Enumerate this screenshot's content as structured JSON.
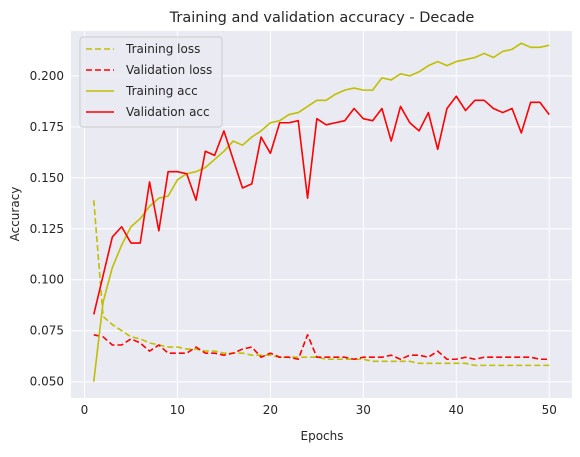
{
  "chart_data": {
    "type": "line",
    "title": "Training and validation accuracy - Decade",
    "xlabel": "Epochs",
    "ylabel": "Accuracy",
    "xlim": [
      -1.45,
      52.45
    ],
    "ylim": [
      0.042,
      0.222
    ],
    "xticks": [
      0,
      10,
      20,
      30,
      40,
      50
    ],
    "yticks": [
      0.05,
      0.075,
      0.1,
      0.125,
      0.15,
      0.175,
      0.2
    ],
    "ytick_labels": [
      "0.050",
      "0.075",
      "0.100",
      "0.125",
      "0.150",
      "0.175",
      "0.200"
    ],
    "grid": true,
    "legend_position": "upper-left",
    "background": "#eaeaf2",
    "x": [
      1,
      2,
      3,
      4,
      5,
      6,
      7,
      8,
      9,
      10,
      11,
      12,
      13,
      14,
      15,
      16,
      17,
      18,
      19,
      20,
      21,
      22,
      23,
      24,
      25,
      26,
      27,
      28,
      29,
      30,
      31,
      32,
      33,
      34,
      35,
      36,
      37,
      38,
      39,
      40,
      41,
      42,
      43,
      44,
      45,
      46,
      47,
      48,
      49,
      50
    ],
    "series": [
      {
        "name": "Training loss",
        "color": "#bfbf00",
        "style": "dashed",
        "values": [
          0.139,
          0.082,
          0.078,
          0.075,
          0.072,
          0.071,
          0.069,
          0.068,
          0.067,
          0.067,
          0.066,
          0.066,
          0.065,
          0.065,
          0.064,
          0.064,
          0.064,
          0.063,
          0.063,
          0.063,
          0.062,
          0.062,
          0.062,
          0.062,
          0.062,
          0.061,
          0.061,
          0.061,
          0.061,
          0.061,
          0.06,
          0.06,
          0.06,
          0.06,
          0.06,
          0.059,
          0.059,
          0.059,
          0.059,
          0.059,
          0.059,
          0.058,
          0.058,
          0.058,
          0.058,
          0.058,
          0.058,
          0.058,
          0.058,
          0.058
        ]
      },
      {
        "name": "Validation loss",
        "color": "#ff0000",
        "style": "dashed",
        "values": [
          0.073,
          0.072,
          0.068,
          0.068,
          0.071,
          0.069,
          0.065,
          0.068,
          0.064,
          0.064,
          0.064,
          0.067,
          0.064,
          0.064,
          0.063,
          0.064,
          0.066,
          0.067,
          0.062,
          0.064,
          0.062,
          0.062,
          0.061,
          0.073,
          0.062,
          0.062,
          0.062,
          0.062,
          0.061,
          0.062,
          0.062,
          0.062,
          0.063,
          0.061,
          0.063,
          0.063,
          0.062,
          0.065,
          0.061,
          0.061,
          0.062,
          0.061,
          0.062,
          0.062,
          0.062,
          0.062,
          0.062,
          0.062,
          0.061,
          0.061
        ]
      },
      {
        "name": "Training acc",
        "color": "#bfbf00",
        "style": "solid",
        "values": [
          0.05,
          0.089,
          0.106,
          0.117,
          0.126,
          0.13,
          0.136,
          0.14,
          0.141,
          0.149,
          0.152,
          0.153,
          0.155,
          0.159,
          0.163,
          0.168,
          0.166,
          0.17,
          0.173,
          0.177,
          0.178,
          0.181,
          0.182,
          0.185,
          0.188,
          0.188,
          0.191,
          0.193,
          0.194,
          0.193,
          0.193,
          0.199,
          0.198,
          0.201,
          0.2,
          0.202,
          0.205,
          0.207,
          0.205,
          0.207,
          0.208,
          0.209,
          0.211,
          0.209,
          0.212,
          0.213,
          0.216,
          0.214,
          0.214,
          0.215
        ]
      },
      {
        "name": "Validation acc",
        "color": "#ff0000",
        "style": "solid",
        "values": [
          0.083,
          0.102,
          0.121,
          0.126,
          0.118,
          0.118,
          0.148,
          0.124,
          0.153,
          0.153,
          0.152,
          0.139,
          0.163,
          0.161,
          0.173,
          0.159,
          0.145,
          0.147,
          0.17,
          0.162,
          0.177,
          0.177,
          0.178,
          0.14,
          0.179,
          0.176,
          0.177,
          0.178,
          0.184,
          0.179,
          0.178,
          0.184,
          0.168,
          0.185,
          0.177,
          0.173,
          0.182,
          0.164,
          0.184,
          0.19,
          0.183,
          0.188,
          0.188,
          0.184,
          0.182,
          0.184,
          0.172,
          0.187,
          0.187,
          0.181
        ]
      }
    ]
  }
}
